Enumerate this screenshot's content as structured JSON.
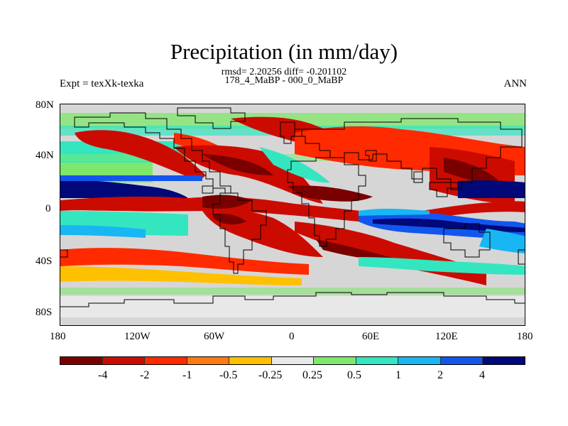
{
  "title": "Precipitation (in mm/day)",
  "stats_line": "rmsd= 2.20256 diff= -0.201102",
  "expt_line": "178_4_MaBP - 000_0_MaBP",
  "left_label": "Expt = texXk-texka",
  "right_label": "ANN",
  "map": {
    "lat_labels": [
      "80N",
      "40N",
      "0",
      "40S",
      "80S"
    ],
    "lon_labels": [
      "180",
      "120W",
      "60W",
      "0",
      "60E",
      "120E",
      "180"
    ]
  },
  "colorbar": {
    "colors": [
      "#7a0000",
      "#cc0b00",
      "#ff2a00",
      "#ff7a10",
      "#ffc000",
      "#e8e8e8",
      "#7de86b",
      "#33e6c0",
      "#18b6f2",
      "#1256ee",
      "#00087a"
    ],
    "tick_labels": [
      "-4",
      "-2",
      "-1",
      "-0.5",
      "-0.25",
      "0.25",
      "0.5",
      "1",
      "2",
      "4"
    ]
  },
  "colors": {
    "ocean_neutral": "#d6d6d6"
  }
}
